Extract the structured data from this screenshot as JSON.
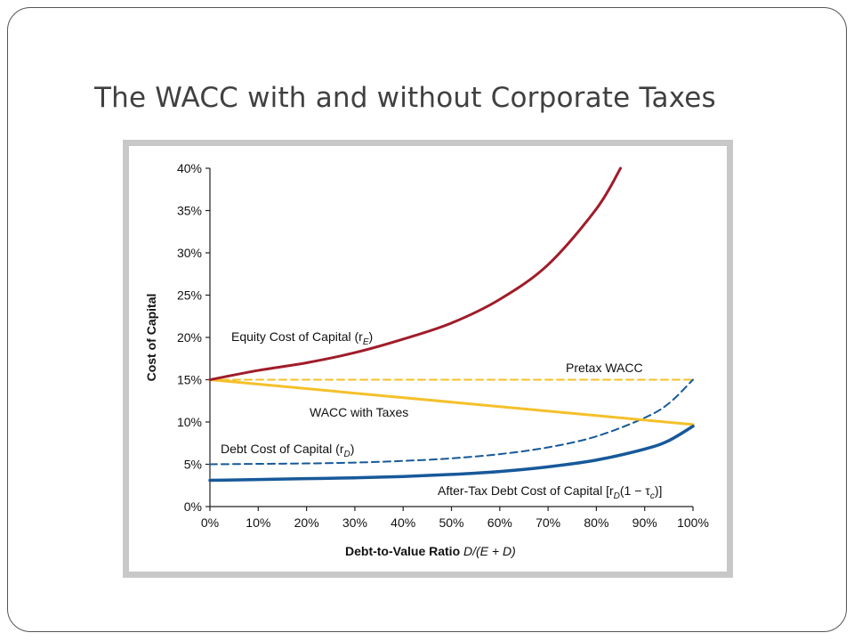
{
  "slide": {
    "title": "The WACC with and without Corporate Taxes"
  },
  "chart_data": {
    "type": "line",
    "xlabel_prefix": "Debt-to-Value Ratio ",
    "xlabel_formula": "D/(E + D)",
    "ylabel": "Cost of Capital",
    "xlim": [
      0,
      100
    ],
    "ylim": [
      0,
      40
    ],
    "x_ticks": [
      "0%",
      "10%",
      "20%",
      "30%",
      "40%",
      "50%",
      "60%",
      "70%",
      "80%",
      "90%",
      "100%"
    ],
    "y_ticks": [
      "0%",
      "5%",
      "10%",
      "15%",
      "20%",
      "25%",
      "30%",
      "35%",
      "40%"
    ],
    "grid": false,
    "colors": {
      "equity": "#a01c2a",
      "wacc": "#f5c02a",
      "debt": "#17599a",
      "plot_bg": "#ffffff",
      "panel_bg": "#c8c8c8"
    },
    "series": [
      {
        "key": "equity",
        "style": "solid",
        "x": [
          0,
          10,
          20,
          30,
          40,
          50,
          60,
          70,
          80,
          85
        ],
        "y": [
          15,
          16.1,
          17.0,
          18.2,
          19.8,
          21.7,
          24.5,
          28.6,
          35.2,
          40
        ]
      },
      {
        "key": "pretax_wacc",
        "style": "dashed",
        "x": [
          0,
          100
        ],
        "y": [
          15,
          15
        ]
      },
      {
        "key": "wacc_taxes",
        "style": "solid",
        "x": [
          0,
          100
        ],
        "y": [
          15,
          9.7
        ]
      },
      {
        "key": "debt",
        "style": "dashed",
        "x": [
          0,
          10,
          20,
          30,
          40,
          50,
          60,
          70,
          80,
          90,
          95,
          100
        ],
        "y": [
          5,
          5.05,
          5.1,
          5.2,
          5.4,
          5.7,
          6.2,
          7.0,
          8.3,
          10.5,
          12.2,
          15
        ]
      },
      {
        "key": "after_tax_debt",
        "style": "solid",
        "x": [
          0,
          10,
          20,
          30,
          40,
          50,
          60,
          70,
          80,
          90,
          95,
          100
        ],
        "y": [
          3.1,
          3.2,
          3.3,
          3.4,
          3.55,
          3.8,
          4.15,
          4.7,
          5.5,
          6.8,
          7.8,
          9.5
        ]
      }
    ],
    "annotations": {
      "equity": {
        "text": "Equity Cost of Capital (r",
        "sub": "E",
        "close": ")"
      },
      "pretax": {
        "text": "Pretax WACC"
      },
      "wacc_taxes": {
        "text": "WACC with Taxes"
      },
      "debt": {
        "text": "Debt Cost of Capital (r",
        "sub": "D",
        "close": ")"
      },
      "after_tax": {
        "text": "After-Tax Debt Cost of Capital [r",
        "sub": "D",
        "mid": "(1 − τ",
        "sub2": "c",
        "close": ")]"
      }
    }
  }
}
